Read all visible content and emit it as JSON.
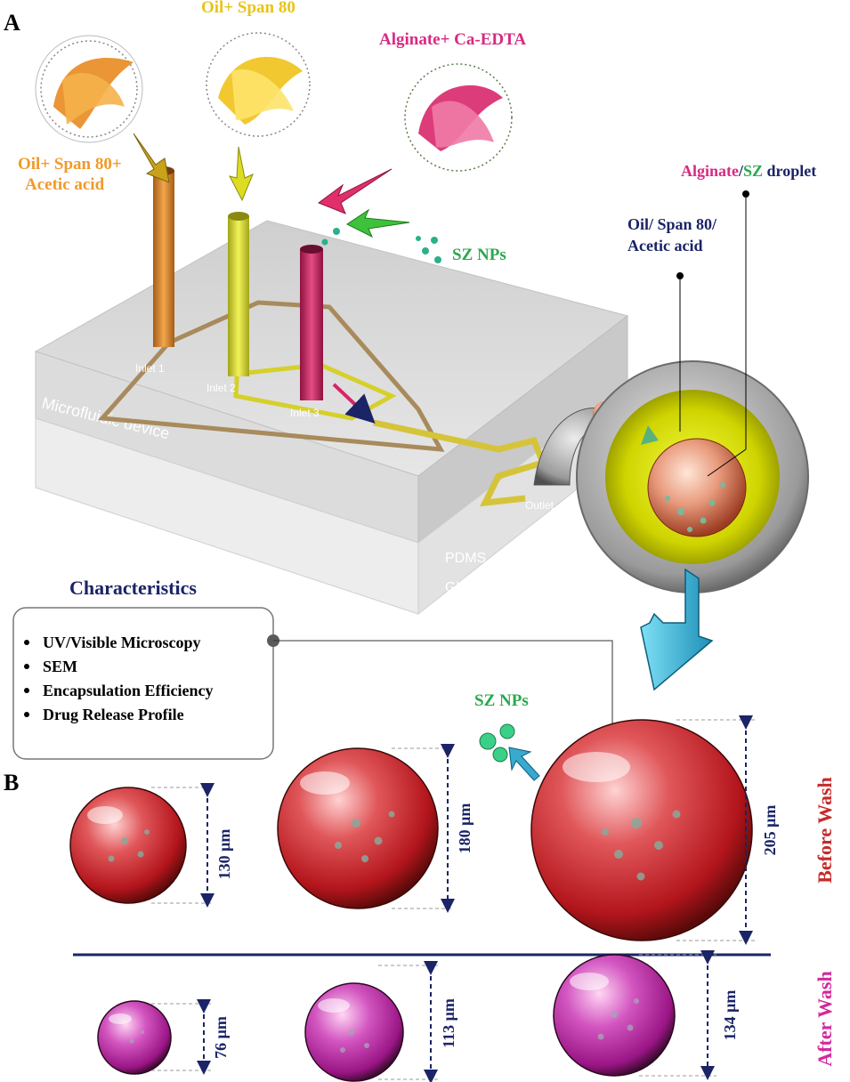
{
  "panels": {
    "a": "A",
    "b": "B"
  },
  "inputs": {
    "oil_span_acetic_line1": "Oil+ Span 80+",
    "oil_span_acetic_line2": "Acetic acid",
    "oil_span": "Oil+ Span 80",
    "alginate_caedta": "Alginate+ Ca-EDTA",
    "sz_nps": "SZ NPs"
  },
  "device": {
    "inlet1": "Inlet 1",
    "inlet2": "Inlet 2",
    "inlet3": "Inlet 3",
    "outlet": "Outlet",
    "device_label": "Microfluidic device",
    "pdms": "PDMS",
    "glass": "Glass"
  },
  "droplet": {
    "title_alginate": "Alginate",
    "title_slash": "/",
    "title_sz": "SZ",
    "title_droplet": " droplet",
    "oil_line1": "Oil/ Span 80/",
    "oil_line2": "Acetic acid"
  },
  "characteristics": {
    "title": "Characteristics",
    "items": [
      "UV/Visible Microscopy",
      "SEM",
      "Encapsulation Efficiency",
      "Drug Release Profile"
    ]
  },
  "panel_b": {
    "sz_nps": "SZ NPs",
    "before_wash": "Before Wash",
    "after_wash": "After Wash",
    "before_sizes": [
      "130 μm",
      "180 μm",
      "205 μm"
    ],
    "after_sizes": [
      "76 μm",
      "113 μm",
      "134 μm"
    ]
  },
  "colors": {
    "navy": "#1a2466",
    "orange": "#f09a2a",
    "yellow": "#e8c417",
    "magenta": "#d82a83",
    "green": "#2aa84e",
    "red": "#c62b2b",
    "pink": "#d12a9b",
    "cyan": "#2aa7c9"
  }
}
